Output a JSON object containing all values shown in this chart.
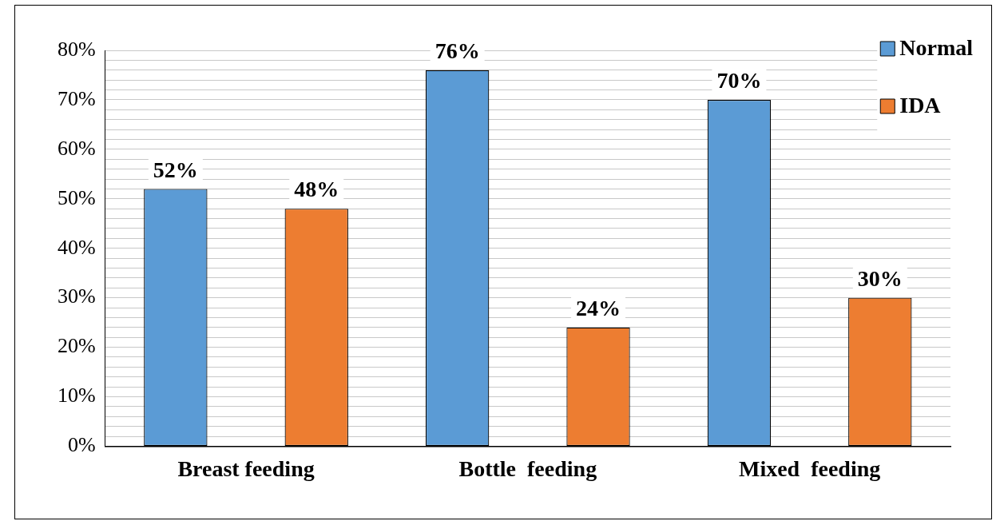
{
  "chart_data": {
    "type": "bar",
    "categories": [
      "Breast feeding",
      "Bottle  feeding",
      "Mixed  feeding"
    ],
    "series": [
      {
        "name": "Normal",
        "color": "#5b9bd5",
        "values": [
          52,
          76,
          70
        ],
        "value_labels": [
          "52%",
          "76%",
          "70%"
        ]
      },
      {
        "name": "IDA",
        "color": "#ed7d31",
        "values": [
          48,
          24,
          30
        ],
        "value_labels": [
          "48%",
          "24%",
          "30%"
        ]
      }
    ],
    "ylim": [
      0,
      80
    ],
    "yticks": [
      {
        "value": 0,
        "label": "0%"
      },
      {
        "value": 2,
        "label": null
      },
      {
        "value": 4,
        "label": null
      },
      {
        "value": 6,
        "label": null
      },
      {
        "value": 8,
        "label": null
      },
      {
        "value": 10,
        "label": "10%"
      },
      {
        "value": 12,
        "label": null
      },
      {
        "value": 14,
        "label": null
      },
      {
        "value": 16,
        "label": null
      },
      {
        "value": 18,
        "label": null
      },
      {
        "value": 20,
        "label": "20%"
      },
      {
        "value": 22,
        "label": null
      },
      {
        "value": 24,
        "label": null
      },
      {
        "value": 26,
        "label": null
      },
      {
        "value": 28,
        "label": null
      },
      {
        "value": 30,
        "label": "30%"
      },
      {
        "value": 32,
        "label": null
      },
      {
        "value": 34,
        "label": null
      },
      {
        "value": 36,
        "label": null
      },
      {
        "value": 38,
        "label": null
      },
      {
        "value": 40,
        "label": "40%"
      },
      {
        "value": 42,
        "label": null
      },
      {
        "value": 44,
        "label": null
      },
      {
        "value": 46,
        "label": null
      },
      {
        "value": 48,
        "label": null
      },
      {
        "value": 50,
        "label": "50%"
      },
      {
        "value": 52,
        "label": null
      },
      {
        "value": 54,
        "label": null
      },
      {
        "value": 56,
        "label": null
      },
      {
        "value": 58,
        "label": null
      },
      {
        "value": 60,
        "label": "60%"
      },
      {
        "value": 62,
        "label": null
      },
      {
        "value": 64,
        "label": null
      },
      {
        "value": 66,
        "label": null
      },
      {
        "value": 68,
        "label": null
      },
      {
        "value": 70,
        "label": "70%"
      },
      {
        "value": 72,
        "label": null
      },
      {
        "value": 74,
        "label": null
      },
      {
        "value": 76,
        "label": null
      },
      {
        "value": 78,
        "label": null
      },
      {
        "value": 80,
        "label": "80%"
      }
    ],
    "grid": "y",
    "legend": "top right"
  }
}
